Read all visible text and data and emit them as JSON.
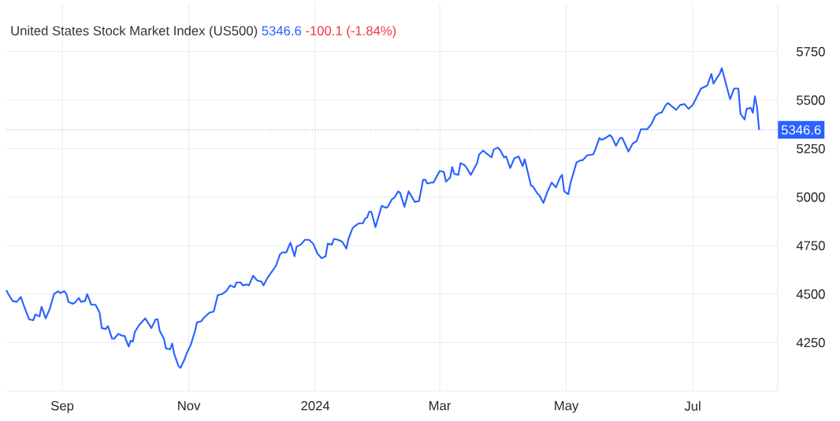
{
  "chart_data": {
    "type": "line",
    "title": "United States Stock Market Index (US500)",
    "annotations": [
      "5346.6",
      "-100.1 (-1.84%)"
    ],
    "xlim": [
      "2023-08-05",
      "2024-08-11"
    ],
    "xticks": [
      {
        "value": "2023-09-01",
        "label": "Sep"
      },
      {
        "value": "2023-11-01",
        "label": "Nov"
      },
      {
        "value": "2024-01-01",
        "label": "2024"
      },
      {
        "value": "2024-03-01",
        "label": "Mar"
      },
      {
        "value": "2024-05-01",
        "label": "May"
      },
      {
        "value": "2024-07-01",
        "label": "Jul"
      }
    ],
    "ylim": [
      4000,
      6000
    ],
    "yticks": [
      4250,
      4500,
      4750,
      5000,
      5250,
      5500,
      5750
    ],
    "grid": true,
    "marker": "none",
    "line_style": "solid",
    "ref_lines": [
      {
        "axis": "y",
        "value": 5346.6,
        "label": "5346.6",
        "color": "#2962ff",
        "line_style": "dotted"
      }
    ],
    "x": [
      "2023-08-05",
      "2023-08-06",
      "2023-08-08",
      "2023-08-10",
      "2023-08-12",
      "2023-08-14",
      "2023-08-16",
      "2023-08-18",
      "2023-08-19",
      "2023-08-21",
      "2023-08-22",
      "2023-08-24",
      "2023-08-26",
      "2023-08-28",
      "2023-08-30",
      "2023-08-31",
      "2023-09-02",
      "2023-09-03",
      "2023-09-04",
      "2023-09-06",
      "2023-09-07",
      "2023-09-09",
      "2023-09-10",
      "2023-09-12",
      "2023-09-13",
      "2023-09-15",
      "2023-09-17",
      "2023-09-19",
      "2023-09-20",
      "2023-09-22",
      "2023-09-23",
      "2023-09-25",
      "2023-09-26",
      "2023-09-28",
      "2023-09-30",
      "2023-10-01",
      "2023-10-03",
      "2023-10-04",
      "2023-10-05",
      "2023-10-06",
      "2023-10-08",
      "2023-10-11",
      "2023-10-14",
      "2023-10-16",
      "2023-10-17",
      "2023-10-18",
      "2023-10-20",
      "2023-10-21",
      "2023-10-23",
      "2023-10-24",
      "2023-10-25",
      "2023-10-27",
      "2023-10-28",
      "2023-10-30",
      "2023-10-31",
      "2023-11-02",
      "2023-11-04",
      "2023-11-05",
      "2023-11-07",
      "2023-11-08",
      "2023-11-11",
      "2023-11-13",
      "2023-11-15",
      "2023-11-17",
      "2023-11-19",
      "2023-11-21",
      "2023-11-23",
      "2023-11-24",
      "2023-11-26",
      "2023-11-27",
      "2023-11-29",
      "2023-11-30",
      "2023-12-02",
      "2023-12-04",
      "2023-12-06",
      "2023-12-07",
      "2023-12-09",
      "2023-12-13",
      "2023-12-15",
      "2023-12-16",
      "2023-12-18",
      "2023-12-20",
      "2023-12-22",
      "2023-12-23",
      "2023-12-25",
      "2023-12-27",
      "2023-12-29",
      "2023-12-31",
      "2024-01-02",
      "2024-01-04",
      "2024-01-06",
      "2024-01-07",
      "2024-01-09",
      "2024-01-10",
      "2024-01-12",
      "2024-01-14",
      "2024-01-16",
      "2024-01-17",
      "2024-01-19",
      "2024-01-20",
      "2024-01-22",
      "2024-01-24",
      "2024-01-25",
      "2024-01-26",
      "2024-01-27",
      "2024-01-28",
      "2024-01-30",
      "2024-02-02",
      "2024-02-04",
      "2024-02-05",
      "2024-02-07",
      "2024-02-08",
      "2024-02-10",
      "2024-02-11",
      "2024-02-13",
      "2024-02-15",
      "2024-02-18",
      "2024-02-20",
      "2024-02-22",
      "2024-02-23",
      "2024-02-24",
      "2024-02-26",
      "2024-02-27",
      "2024-02-28",
      "2024-03-01",
      "2024-03-03",
      "2024-03-04",
      "2024-03-06",
      "2024-03-07",
      "2024-03-08",
      "2024-03-10",
      "2024-03-11",
      "2024-03-13",
      "2024-03-14",
      "2024-03-16",
      "2024-03-19",
      "2024-03-20",
      "2024-03-22",
      "2024-03-23",
      "2024-03-26",
      "2024-03-27",
      "2024-03-29",
      "2024-03-30",
      "2024-04-01",
      "2024-04-02",
      "2024-04-04",
      "2024-04-06",
      "2024-04-08",
      "2024-04-10",
      "2024-04-11",
      "2024-04-14",
      "2024-04-15",
      "2024-04-17",
      "2024-04-18",
      "2024-04-20",
      "2024-04-22",
      "2024-04-24",
      "2024-04-26",
      "2024-04-28",
      "2024-04-29",
      "2024-04-30",
      "2024-05-02",
      "2024-05-03",
      "2024-05-06",
      "2024-05-08",
      "2024-05-09",
      "2024-05-11",
      "2024-05-14",
      "2024-05-15",
      "2024-05-17",
      "2024-05-18",
      "2024-05-20",
      "2024-05-22",
      "2024-05-23",
      "2024-05-25",
      "2024-05-27",
      "2024-05-28",
      "2024-05-31",
      "2024-06-02",
      "2024-06-04",
      "2024-06-06",
      "2024-06-09",
      "2024-06-11",
      "2024-06-13",
      "2024-06-15",
      "2024-06-16",
      "2024-06-18",
      "2024-06-19",
      "2024-06-23",
      "2024-06-25",
      "2024-06-27",
      "2024-06-29",
      "2024-07-01",
      "2024-07-05",
      "2024-07-08",
      "2024-07-10",
      "2024-07-11",
      "2024-07-13",
      "2024-07-14",
      "2024-07-15",
      "2024-07-17",
      "2024-07-19",
      "2024-07-21",
      "2024-07-23",
      "2024-07-24",
      "2024-07-26",
      "2024-07-27",
      "2024-07-29",
      "2024-07-30",
      "2024-07-31",
      "2024-08-01",
      "2024-08-02"
    ],
    "series": [
      {
        "color": "#2962ff",
        "values": [
          4520,
          4500,
          4465,
          4460,
          4485,
          4425,
          4370,
          4365,
          4395,
          4385,
          4435,
          4375,
          4425,
          4500,
          4515,
          4505,
          4515,
          4500,
          4460,
          4450,
          4455,
          4480,
          4460,
          4465,
          4500,
          4445,
          4445,
          4405,
          4325,
          4320,
          4335,
          4270,
          4270,
          4295,
          4285,
          4285,
          4230,
          4260,
          4255,
          4305,
          4340,
          4375,
          4325,
          4370,
          4370,
          4310,
          4270,
          4220,
          4215,
          4245,
          4190,
          4130,
          4120,
          4165,
          4195,
          4240,
          4310,
          4355,
          4360,
          4375,
          4405,
          4410,
          4495,
          4500,
          4515,
          4545,
          4535,
          4560,
          4560,
          4545,
          4550,
          4545,
          4595,
          4570,
          4565,
          4545,
          4585,
          4645,
          4705,
          4715,
          4715,
          4765,
          4695,
          4745,
          4755,
          4780,
          4780,
          4760,
          4710,
          4685,
          4695,
          4760,
          4755,
          4785,
          4780,
          4770,
          4735,
          4785,
          4840,
          4850,
          4865,
          4865,
          4890,
          4895,
          4925,
          4925,
          4845,
          4955,
          4945,
          4950,
          4990,
          4995,
          5030,
          5020,
          4950,
          5030,
          4975,
          4980,
          5090,
          5090,
          5070,
          5075,
          5075,
          5095,
          5135,
          5130,
          5080,
          5100,
          5155,
          5120,
          5115,
          5175,
          5165,
          5150,
          5115,
          5175,
          5220,
          5240,
          5230,
          5205,
          5245,
          5255,
          5245,
          5205,
          5210,
          5150,
          5200,
          5210,
          5160,
          5195,
          5060,
          5055,
          5020,
          5010,
          4970,
          5030,
          5075,
          5050,
          5100,
          5115,
          5030,
          5015,
          5070,
          5180,
          5190,
          5190,
          5215,
          5220,
          5245,
          5305,
          5295,
          5305,
          5320,
          5310,
          5265,
          5305,
          5305,
          5235,
          5275,
          5290,
          5350,
          5350,
          5375,
          5420,
          5435,
          5435,
          5475,
          5485,
          5450,
          5475,
          5480,
          5455,
          5475,
          5560,
          5575,
          5635,
          5585,
          5620,
          5635,
          5665,
          5585,
          5505,
          5560,
          5560,
          5430,
          5400,
          5455,
          5460,
          5435,
          5520,
          5465,
          5346.6
        ]
      }
    ]
  }
}
